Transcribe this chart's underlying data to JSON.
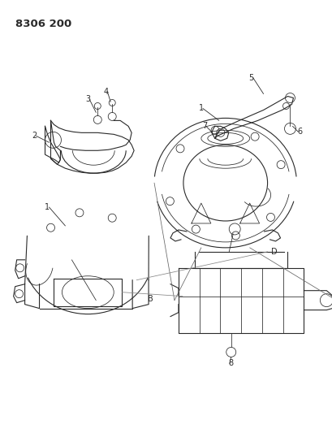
{
  "title": "8306 200",
  "bg": "#ffffff",
  "lc": "#2a2a2a",
  "fig_w": 4.1,
  "fig_h": 5.33,
  "dpi": 100,
  "label_fs": 7.0,
  "title_fs": 9.5,
  "lw": 0.8
}
